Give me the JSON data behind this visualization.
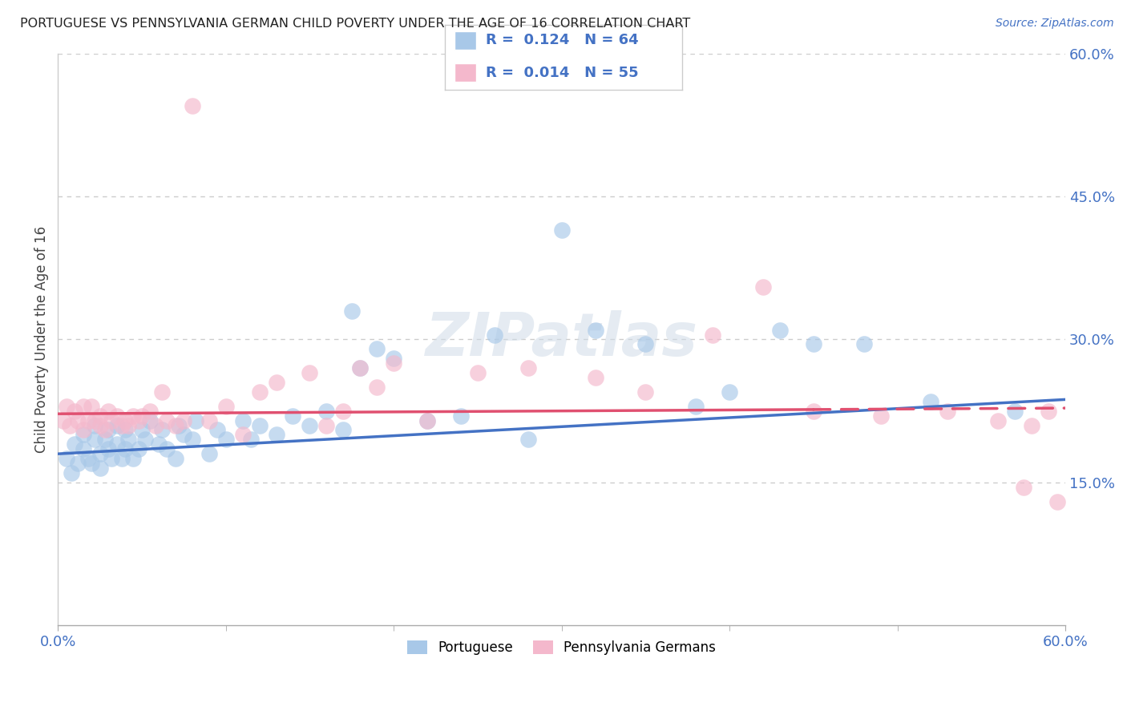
{
  "title": "PORTUGUESE VS PENNSYLVANIA GERMAN CHILD POVERTY UNDER THE AGE OF 16 CORRELATION CHART",
  "source": "Source: ZipAtlas.com",
  "ylabel": "Child Poverty Under the Age of 16",
  "xlim": [
    0,
    0.6
  ],
  "ylim": [
    0,
    0.6
  ],
  "ytick_vals": [
    0.15,
    0.3,
    0.45,
    0.6
  ],
  "ytick_labels": [
    "15.0%",
    "30.0%",
    "45.0%",
    "60.0%"
  ],
  "portuguese_color": "#a8c8e8",
  "penn_german_color": "#f4b8cc",
  "trend_blue": "#4472c4",
  "trend_pink": "#e05070",
  "axis_label_color": "#4472c4",
  "legend_R_blue": "0.124",
  "legend_N_blue": "64",
  "legend_R_pink": "0.014",
  "legend_N_pink": "55",
  "background_color": "#ffffff",
  "grid_color": "#cccccc",
  "watermark": "ZIPatlas",
  "port_x": [
    0.005,
    0.008,
    0.01,
    0.012,
    0.015,
    0.015,
    0.018,
    0.02,
    0.022,
    0.022,
    0.025,
    0.025,
    0.028,
    0.03,
    0.03,
    0.032,
    0.035,
    0.035,
    0.038,
    0.04,
    0.04,
    0.042,
    0.045,
    0.048,
    0.05,
    0.052,
    0.055,
    0.06,
    0.062,
    0.065,
    0.07,
    0.072,
    0.075,
    0.08,
    0.082,
    0.09,
    0.095,
    0.1,
    0.11,
    0.115,
    0.12,
    0.13,
    0.14,
    0.15,
    0.16,
    0.17,
    0.175,
    0.18,
    0.19,
    0.2,
    0.22,
    0.24,
    0.26,
    0.28,
    0.3,
    0.32,
    0.35,
    0.38,
    0.4,
    0.43,
    0.45,
    0.48,
    0.52,
    0.57
  ],
  "port_y": [
    0.175,
    0.16,
    0.19,
    0.17,
    0.2,
    0.185,
    0.175,
    0.17,
    0.21,
    0.195,
    0.165,
    0.18,
    0.195,
    0.185,
    0.205,
    0.175,
    0.19,
    0.21,
    0.175,
    0.185,
    0.205,
    0.195,
    0.175,
    0.185,
    0.205,
    0.195,
    0.215,
    0.19,
    0.205,
    0.185,
    0.175,
    0.21,
    0.2,
    0.195,
    0.215,
    0.18,
    0.205,
    0.195,
    0.215,
    0.195,
    0.21,
    0.2,
    0.22,
    0.21,
    0.225,
    0.205,
    0.33,
    0.27,
    0.29,
    0.28,
    0.215,
    0.22,
    0.305,
    0.195,
    0.415,
    0.31,
    0.295,
    0.23,
    0.245,
    0.31,
    0.295,
    0.295,
    0.235,
    0.225
  ],
  "penn_x": [
    0.003,
    0.005,
    0.007,
    0.01,
    0.012,
    0.015,
    0.015,
    0.018,
    0.02,
    0.022,
    0.025,
    0.025,
    0.028,
    0.03,
    0.032,
    0.035,
    0.038,
    0.04,
    0.042,
    0.045,
    0.048,
    0.05,
    0.055,
    0.058,
    0.062,
    0.065,
    0.07,
    0.075,
    0.08,
    0.09,
    0.1,
    0.11,
    0.12,
    0.13,
    0.15,
    0.16,
    0.17,
    0.18,
    0.19,
    0.2,
    0.22,
    0.25,
    0.28,
    0.32,
    0.35,
    0.39,
    0.42,
    0.45,
    0.49,
    0.53,
    0.56,
    0.575,
    0.58,
    0.59,
    0.595
  ],
  "penn_y": [
    0.215,
    0.23,
    0.21,
    0.225,
    0.215,
    0.23,
    0.205,
    0.215,
    0.23,
    0.215,
    0.22,
    0.21,
    0.205,
    0.225,
    0.215,
    0.22,
    0.21,
    0.215,
    0.21,
    0.22,
    0.215,
    0.22,
    0.225,
    0.21,
    0.245,
    0.215,
    0.21,
    0.215,
    0.545,
    0.215,
    0.23,
    0.2,
    0.245,
    0.255,
    0.265,
    0.21,
    0.225,
    0.27,
    0.25,
    0.275,
    0.215,
    0.265,
    0.27,
    0.26,
    0.245,
    0.305,
    0.355,
    0.225,
    0.22,
    0.225,
    0.215,
    0.145,
    0.21,
    0.225,
    0.13
  ]
}
